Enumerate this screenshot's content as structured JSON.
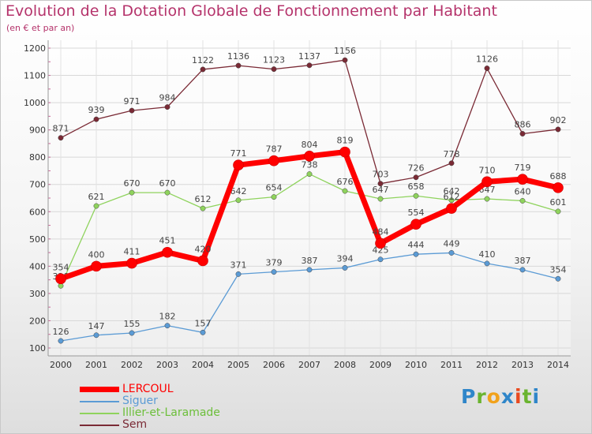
{
  "chart_data": {
    "type": "line",
    "title": "Evolution de la Dotation Globale de Fonctionnement par Habitant",
    "subtitle": "(en € et par an)",
    "x": [
      "2000",
      "2001",
      "2002",
      "2003",
      "2004",
      "2005",
      "2006",
      "2007",
      "2008",
      "2009",
      "2010",
      "2011",
      "2012",
      "2013",
      "2014"
    ],
    "ylim": [
      100,
      1200
    ],
    "yticks": [
      "100",
      "200",
      "300",
      "400",
      "500",
      "600",
      "700",
      "800",
      "900",
      "1000",
      "1100",
      "1200"
    ],
    "grid": true,
    "series": [
      {
        "name": "Sem",
        "color": "#7a2a35",
        "values": [
          871,
          939,
          971,
          984,
          1122,
          1136,
          1123,
          1137,
          1156,
          703,
          726,
          778,
          1126,
          886,
          902
        ],
        "labels": [
          "871",
          "939",
          "971",
          "984",
          "1122",
          "1136",
          "1123",
          "1137",
          "1156",
          "703",
          "726",
          "778",
          "1126",
          "886",
          "902"
        ]
      },
      {
        "name": "Illier-et-Laramade",
        "color": "#8fd35d",
        "values": [
          328,
          621,
          670,
          670,
          612,
          642,
          654,
          738,
          676,
          647,
          658,
          642,
          647,
          640,
          601
        ],
        "labels": [
          "328",
          "621",
          "670",
          "670",
          "612",
          "642",
          "654",
          "738",
          "676",
          "647",
          "658",
          "642",
          "647",
          "640",
          "601"
        ]
      },
      {
        "name": "Siguer",
        "color": "#5b9bd5",
        "values": [
          126,
          147,
          155,
          182,
          157,
          371,
          379,
          387,
          394,
          425,
          444,
          449,
          410,
          387,
          354
        ],
        "labels": [
          "126",
          "147",
          "155",
          "182",
          "157",
          "371",
          "379",
          "387",
          "394",
          "425",
          "444",
          "449",
          "410",
          "387",
          "354"
        ]
      },
      {
        "name": "LERCOUL",
        "color": "#ff0000",
        "values": [
          354,
          400,
          411,
          451,
          420,
          771,
          787,
          804,
          819,
          484,
          554,
          612,
          710,
          719,
          688
        ],
        "labels": [
          "354",
          "400",
          "411",
          "451",
          "420",
          "771",
          "787",
          "804",
          "819",
          "484",
          "554",
          "612",
          "710",
          "719",
          "688"
        ]
      }
    ],
    "legend": [
      {
        "name": "LERCOUL",
        "color": "#ff0000"
      },
      {
        "name": "Siguer",
        "color": "#5b9bd5"
      },
      {
        "name": "Illier-et-Laramade",
        "color": "#8fd35d"
      },
      {
        "name": "Sem",
        "color": "#7a2a35"
      }
    ]
  },
  "logo": {
    "letters": [
      "P",
      "r",
      "o",
      "x",
      "i",
      "t",
      "i"
    ]
  }
}
